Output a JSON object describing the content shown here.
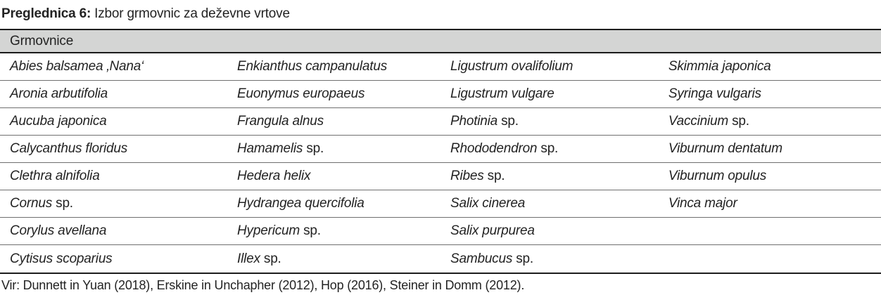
{
  "caption": {
    "label": "Preglednica 6:",
    "text": " Izbor grmovnic za deževne vrtove"
  },
  "table": {
    "header": "Grmovnice",
    "rows": [
      [
        {
          "italic": "Abies balsamea ‚Nana‘",
          "plain": ""
        },
        {
          "italic": "Enkianthus campanulatus",
          "plain": ""
        },
        {
          "italic": "Ligustrum ovalifolium",
          "plain": ""
        },
        {
          "italic": "Skimmia japonica",
          "plain": ""
        }
      ],
      [
        {
          "italic": "Aronia arbutifolia",
          "plain": ""
        },
        {
          "italic": "Euonymus europaeus",
          "plain": ""
        },
        {
          "italic": "Ligustrum vulgare",
          "plain": ""
        },
        {
          "italic": "Syringa vulgaris",
          "plain": ""
        }
      ],
      [
        {
          "italic": "Aucuba japonica",
          "plain": ""
        },
        {
          "italic": "Frangula alnus",
          "plain": ""
        },
        {
          "italic": "Photinia",
          "plain": " sp."
        },
        {
          "italic": "Vaccinium",
          "plain": " sp."
        }
      ],
      [
        {
          "italic": "Calycanthus floridus",
          "plain": ""
        },
        {
          "italic": "Hamamelis",
          "plain": " sp."
        },
        {
          "italic": "Rhododendron",
          "plain": " sp."
        },
        {
          "italic": "Viburnum dentatum",
          "plain": ""
        }
      ],
      [
        {
          "italic": "Clethra alnifolia",
          "plain": ""
        },
        {
          "italic": "Hedera helix",
          "plain": ""
        },
        {
          "italic": "Ribes",
          "plain": " sp."
        },
        {
          "italic": "Viburnum opulus",
          "plain": ""
        }
      ],
      [
        {
          "italic": "Cornus",
          "plain": " sp."
        },
        {
          "italic": "Hydrangea quercifolia",
          "plain": ""
        },
        {
          "italic": "Salix cinerea",
          "plain": ""
        },
        {
          "italic": "Vinca major",
          "plain": ""
        }
      ],
      [
        {
          "italic": "Corylus avellana",
          "plain": ""
        },
        {
          "italic": "Hypericum",
          "plain": " sp."
        },
        {
          "italic": "Salix purpurea",
          "plain": ""
        },
        {
          "italic": "",
          "plain": ""
        }
      ],
      [
        {
          "italic": "Cytisus scoparius",
          "plain": ""
        },
        {
          "italic": "Illex",
          "plain": " sp."
        },
        {
          "italic": "Sambucus",
          "plain": " sp."
        },
        {
          "italic": "",
          "plain": ""
        }
      ]
    ]
  },
  "source": "Vir: Dunnett in Yuan (2018), Erskine in Unchapher (2012), Hop (2016), Steiner in Domm (2012).",
  "colors": {
    "header_bg": "#d4d5d4",
    "border_strong": "#1c1c1c",
    "border_light": "#6f6f6f",
    "text": "#232323"
  }
}
